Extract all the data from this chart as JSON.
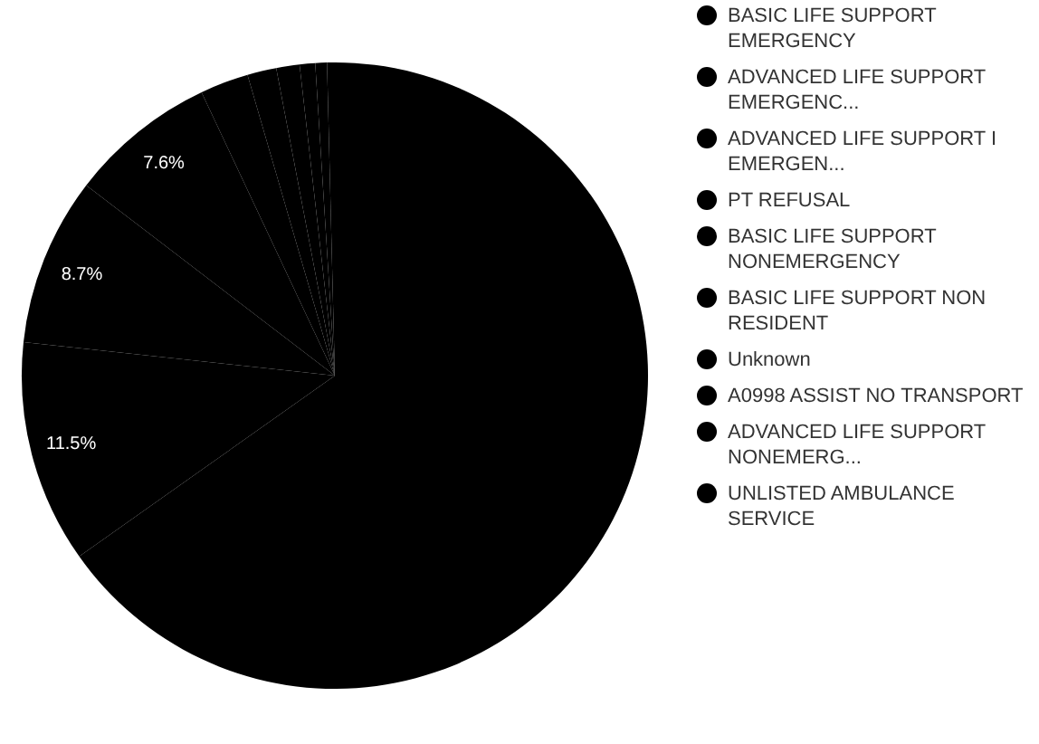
{
  "chart_data": {
    "type": "pie",
    "legend": "right",
    "categories": [
      "BASIC LIFE SUPPORT EMERGENCY",
      "ADVANCED LIFE SUPPORT EMERGENC...",
      "ADVANCED LIFE SUPPORT I EMERGEN...",
      "PT REFUSAL",
      "BASIC LIFE SUPPORT NONEMERGENCY",
      "BASIC LIFE SUPPORT NON RESIDENT",
      "Unknown",
      "A0998 ASSIST NO TRANSPORT",
      "ADVANCED LIFE SUPPORT NONEMERG...",
      "UNLISTED AMBULANCE SERVICE"
    ],
    "values": [
      65.2,
      11.5,
      8.7,
      7.6,
      2.5,
      1.5,
      1.2,
      0.8,
      0.6,
      0.4
    ],
    "value_labels": [
      null,
      "11.5%",
      "8.7%",
      "7.6%",
      null,
      null,
      null,
      null,
      null,
      null
    ],
    "colors": [
      "#000000",
      "#000000",
      "#000000",
      "#000000",
      "#000000",
      "#000000",
      "#000000",
      "#000000",
      "#000000",
      "#000000"
    ]
  }
}
